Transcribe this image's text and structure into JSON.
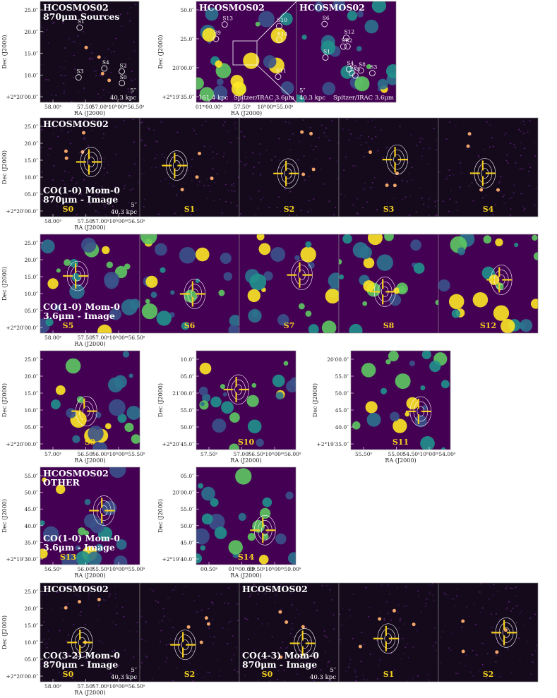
{
  "rows": [
    {
      "panels": [
        {
          "title": [
            "HCOSMOS02",
            "870μm Sources"
          ],
          "markers": [
            "S0",
            "S1",
            "S3",
            "S4",
            "S2"
          ],
          "scale": [
            "5″",
            "40.3 kpc"
          ],
          "yticks": [
            "25.0″",
            "20.0″",
            "15.0″",
            "10.0″",
            "+2°20′00.0″"
          ],
          "xticks": [
            "58.00ˢ",
            "57.50ˢ",
            "57.00ˢ10ʰ00ᵐ56.50ˢ"
          ],
          "ylabel": "Dec (J2000)",
          "xlabel": "RA (J2000)"
        },
        {
          "title": [
            "HCOSMOS02"
          ],
          "markers": [
            "S10",
            "S9",
            "S11",
            "S14",
            "S13"
          ],
          "annotations": [
            "161.4 kpc",
            "Spitzer/IRAC 3.6μm"
          ],
          "yticks": [
            "50.0″",
            "25.0″",
            "20′00.0″",
            "+2°19′35.0″"
          ],
          "xticks": [
            "01ᵐ00.00ˢ",
            "57.50ˢ",
            "10ʰ00ᵐ55.00ˢ"
          ],
          "ylabel": "Dec (J2000)",
          "xlabel": "RA (J2000)"
        },
        {
          "title": [
            "HCOSMOS02"
          ],
          "markers": [
            "S6",
            "S0",
            "S5",
            "S3",
            "S1",
            "S7",
            "S4",
            "S2",
            "S12",
            "S8"
          ],
          "scale": [
            "5″",
            "40.3 kpc"
          ],
          "annotations": [
            "Spitzer/IRAC 3.6μm"
          ]
        }
      ]
    },
    {
      "panels": [
        {
          "title": [
            "HCOSMOS02"
          ],
          "caption": [
            "CO(1-0) Mom-0",
            "870μm - Image"
          ],
          "source": "S0",
          "scale": [
            "5″",
            "40.3 kpc"
          ],
          "yticks": [
            "25.0″",
            "20.0″",
            "15.0″",
            "10.0″",
            "05.0″",
            "+2°20′00.0″"
          ],
          "xticks": [
            "58.00ˢ",
            "57.50ˢ",
            "57.00ˢ10ʰ00ᵐ56.50ˢ"
          ],
          "ylabel": "Dec (J2000)",
          "xlabel": "RA (J2000)"
        },
        {
          "source": "S1"
        },
        {
          "source": "S2"
        },
        {
          "source": "S3"
        },
        {
          "source": "S4"
        }
      ]
    },
    {
      "panels": [
        {
          "caption": [
            "CO(1-0) Mom-0",
            "3.6μm - Image"
          ],
          "source": "S5",
          "yticks": [
            "25.0″",
            "20.0″",
            "15.0″",
            "10.0″",
            "05.0″",
            "+2°20′00.0″"
          ],
          "xticks": [
            "58.00ˢ",
            "57.50ˢ",
            "57.00ˢ10ʰ00ᵐ56.50ˢ"
          ],
          "ylabel": "Dec (J2000)",
          "xlabel": "RA (J2000)"
        },
        {
          "source": "S6"
        },
        {
          "source": "S7"
        },
        {
          "source": "S8"
        },
        {
          "source": "S12"
        }
      ]
    },
    {
      "panels": [
        {
          "source": "S9",
          "yticks": [
            "25.0″",
            "20.0″",
            "15.0″",
            "10.0″",
            "05.0″",
            "+2°20′00.0″"
          ],
          "xticks": [
            "57.00ˢ",
            "56.50ˢ",
            "56.00ˢ10ʰ00ᵐ55.50ˢ"
          ],
          "ylabel": "Dec (J2000)",
          "xlabel": "RA (J2000)"
        },
        {
          "source": "S10",
          "yticks": [
            "10.0″",
            "05.0″",
            "21′00.0″",
            "55.0″",
            "50.0″",
            "+2°20′45.0″"
          ],
          "xticks": [
            "57.50ˢ",
            "57.00ˢ",
            "56.50ˢ10ʰ00ᵐ56.00ˢ"
          ],
          "ylabel": "Dec (J2000)",
          "xlabel": "RA (J2000)"
        },
        {
          "source": "S11",
          "yticks": [
            "20′00.0″",
            "55.0″",
            "50.0″",
            "45.0″",
            "40.0″",
            "+2°19′35.0″"
          ],
          "xticks": [
            "55.50ˢ",
            "55.00ˢ",
            "54.50ˢ10ʰ00ᵐ54.00ˢ"
          ],
          "ylabel": "Dec (J2000)",
          "xlabel": "RA (J2000)"
        }
      ]
    },
    {
      "panels": [
        {
          "title": [
            "HCOSMOS02",
            "OTHER"
          ],
          "caption": [
            "CO(1-0) Mom-0",
            "3.6μm - Image"
          ],
          "source": "S13",
          "yticks": [
            "55.0″",
            "50.0″",
            "45.0″",
            "40.0″",
            "35.0″",
            "+2°19′30.0″"
          ],
          "xticks": [
            "56.50ˢ",
            "56.00ˢ",
            "55.50ˢ10ʰ00ᵐ55.00ˢ"
          ],
          "ylabel": "Dec (J2000)",
          "xlabel": "RA (J2000)"
        },
        {
          "source": "S14",
          "yticks": [
            "05.0″",
            "20′00.0″",
            "55.0″",
            "50.0″",
            "45.0″",
            "+2°19′40.0″"
          ],
          "xticks": [
            "00.50ˢ",
            "01ᵐ00.00ˢ",
            "59.50ˢ10ʰ00ᵐ59.00ˢ"
          ],
          "ylabel": "Dec (J2000)",
          "xlabel": "RA (J2000)"
        }
      ]
    },
    {
      "panels": [
        {
          "title": [
            "HCOSMOS02"
          ],
          "caption": [
            "CO(3-2) Mom-0",
            "870μm - Image"
          ],
          "source": "S0",
          "scale": [
            "5″",
            "40.3 kpc"
          ],
          "yticks": [
            "25.0″",
            "20.0″",
            "15.0″",
            "10.0″",
            "05.0″",
            "+2°20′00.0″"
          ],
          "xticks": [
            "58.00ˢ",
            "57.50ˢ",
            "57.00ˢ10ʰ00ᵐ56.50ˢ"
          ],
          "ylabel": "Dec (J2000)",
          "xlabel": "RA (J2000)"
        },
        {
          "source": "S2"
        },
        {
          "title": [
            "HCOSMOS02"
          ],
          "caption": [
            "CO(4-3) Mom-0",
            "870μm - Image"
          ],
          "source": "S0",
          "scale": [
            "5″",
            "40.3 kpc"
          ]
        },
        {
          "source": "S1"
        },
        {
          "source": "S2"
        }
      ]
    }
  ]
}
